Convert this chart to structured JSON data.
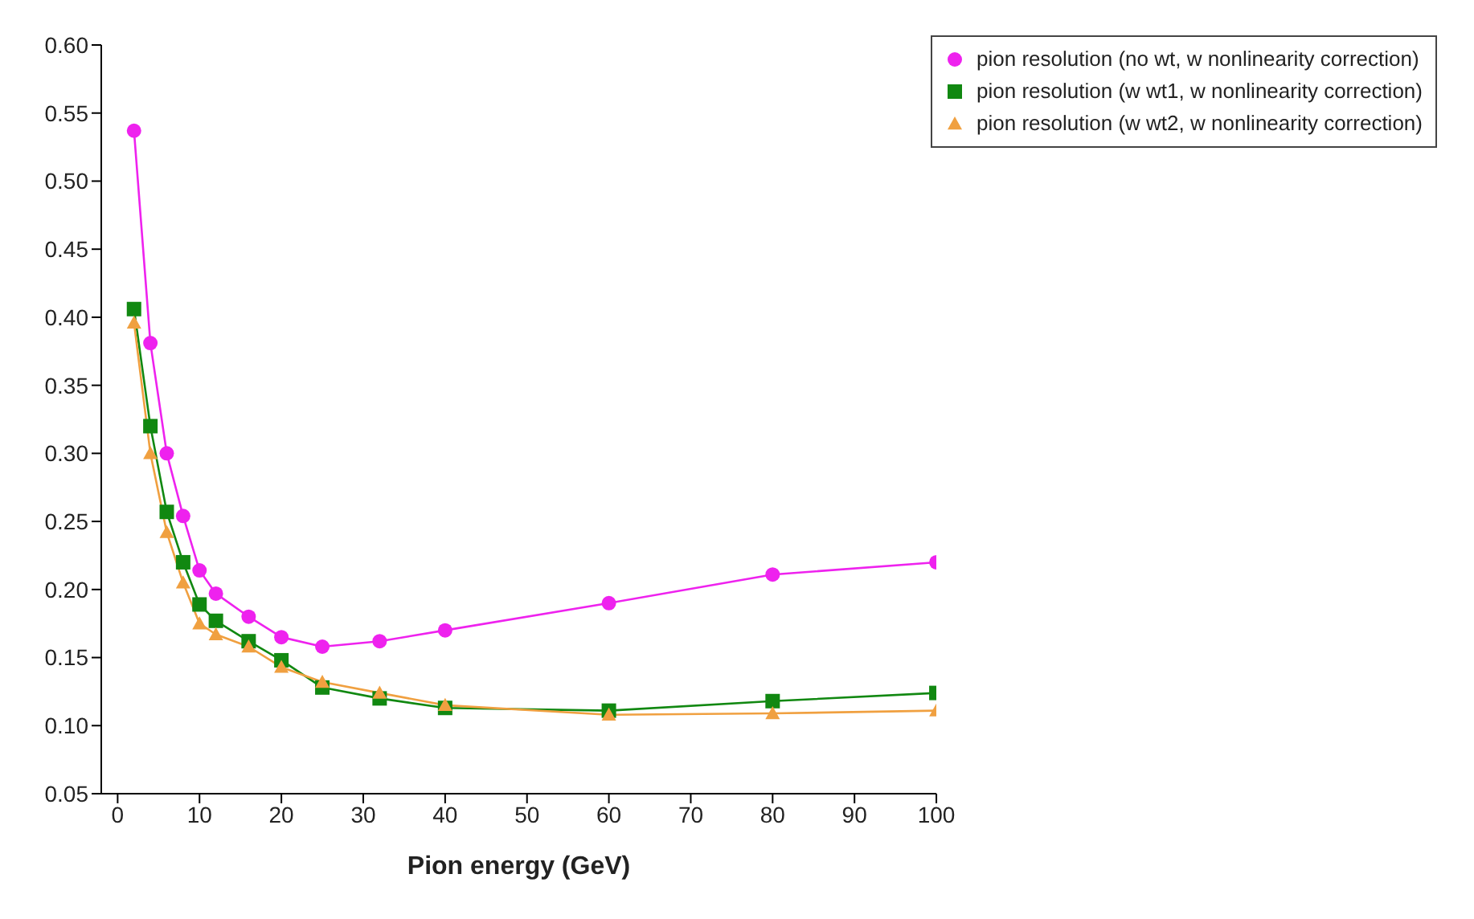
{
  "chart_data": {
    "type": "line",
    "xlabel": "Pion energy (GeV)",
    "x": [
      2,
      4,
      6,
      8,
      10,
      12,
      16,
      20,
      25,
      32,
      40,
      60,
      80,
      100
    ],
    "series": [
      {
        "name": "pion resolution (no wt, w nonlinearity correction)",
        "color": "#ee22ee",
        "marker": "circle",
        "values": [
          0.537,
          0.381,
          0.3,
          0.254,
          0.214,
          0.197,
          0.18,
          0.165,
          0.158,
          0.162,
          0.17,
          0.19,
          0.211,
          0.22
        ]
      },
      {
        "name": "pion resolution (w wt1, w nonlinearity correction)",
        "color": "#118811",
        "marker": "square",
        "values": [
          0.406,
          0.32,
          0.257,
          0.22,
          0.189,
          0.177,
          0.162,
          0.148,
          0.128,
          0.12,
          0.113,
          0.111,
          0.118,
          0.124
        ]
      },
      {
        "name": "pion resolution (w wt2, w nonlinearity correction)",
        "color": "#f0a040",
        "marker": "triangle",
        "values": [
          0.396,
          0.3,
          0.242,
          0.205,
          0.175,
          0.167,
          0.158,
          0.143,
          0.132,
          0.124,
          0.115,
          0.108,
          0.109,
          0.111
        ]
      }
    ],
    "xlim": [
      -2,
      100
    ],
    "xticks": [
      0,
      10,
      20,
      30,
      40,
      50,
      60,
      70,
      80,
      90,
      100
    ],
    "ylim": [
      0.05,
      0.6
    ],
    "yticks": [
      {
        "value": 0.05,
        "label": "0.05"
      },
      {
        "value": 0.1,
        "label": "0.10"
      },
      {
        "value": 0.15,
        "label": "0.15"
      },
      {
        "value": 0.2,
        "label": "0.20"
      },
      {
        "value": 0.25,
        "label": "0.25"
      },
      {
        "value": 0.3,
        "label": "0.30"
      },
      {
        "value": 0.35,
        "label": "0.35"
      },
      {
        "value": 0.4,
        "label": "0.40"
      },
      {
        "value": 0.45,
        "label": "0.45"
      },
      {
        "value": 0.5,
        "label": "0.50"
      },
      {
        "value": 0.55,
        "label": "0.55"
      },
      {
        "value": 0.6,
        "label": "0.60"
      }
    ],
    "grid": false,
    "legend": "top right",
    "line_style": "solid"
  }
}
